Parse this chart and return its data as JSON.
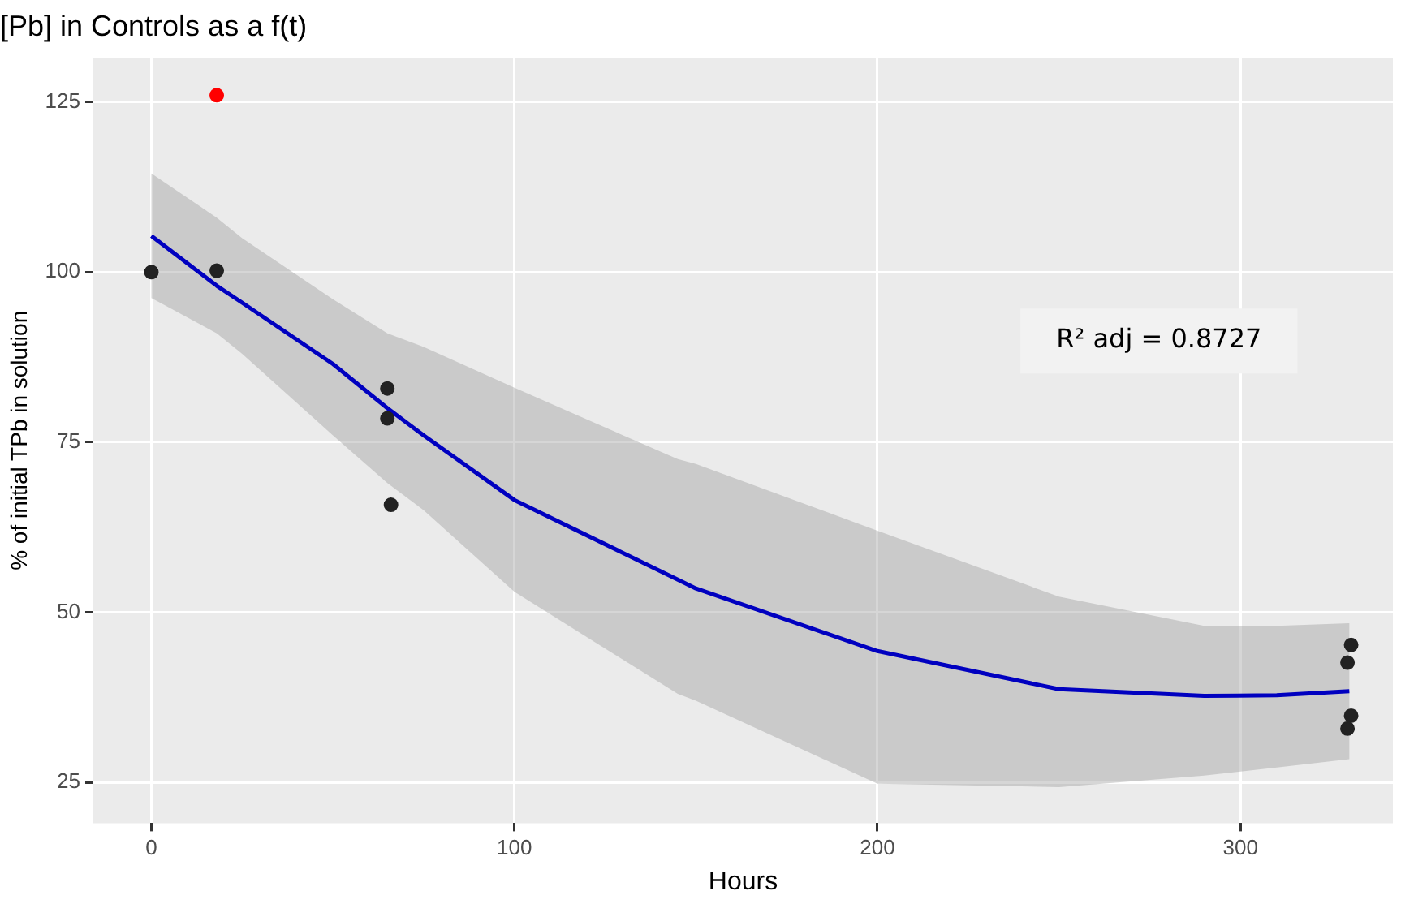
{
  "chart_data": {
    "type": "scatter",
    "title": "[Pb] in Controls as a f(t)",
    "xlabel": "Hours",
    "ylabel": "% of initial TPb in solution",
    "xlim": [
      -16,
      342
    ],
    "xticks": [
      0,
      100,
      200,
      300
    ],
    "ylim": [
      19,
      131.5
    ],
    "yticks": [
      25,
      50,
      75,
      100,
      125
    ],
    "grid": true,
    "legend": false,
    "marker": "circle",
    "annotations": [
      "R² adj = 0.8727"
    ],
    "series": [
      {
        "type": "line",
        "marker": "none",
        "color": "#0000c0",
        "x": [
          0,
          18,
          25,
          50,
          65,
          75,
          100,
          145,
          150,
          200,
          250,
          290,
          310,
          330
        ],
        "values": [
          105.3,
          98,
          95.5,
          86.5,
          80,
          76,
          66.5,
          54.8,
          53.5,
          44.3,
          38.7,
          37.7,
          37.8,
          38.4
        ],
        "lower": [
          96.2,
          91,
          88,
          76,
          69,
          65,
          53,
          38,
          37,
          24.8,
          24.3,
          26,
          27.2,
          28.4
        ],
        "upper": [
          114.5,
          108,
          105,
          96,
          91,
          89,
          83,
          72.5,
          71.8,
          62,
          52.3,
          48,
          48,
          48.4
        ]
      },
      {
        "color": "#222222",
        "x": [
          0,
          18,
          65,
          65,
          66,
          330.5,
          329.5,
          330.5,
          329.5
        ],
        "values": [
          100,
          100.2,
          82.9,
          78.5,
          65.8,
          45.2,
          42.6,
          34.8,
          32.9
        ]
      },
      {
        "color": "#ff0000",
        "x": [
          18
        ],
        "values": [
          126
        ]
      }
    ]
  }
}
